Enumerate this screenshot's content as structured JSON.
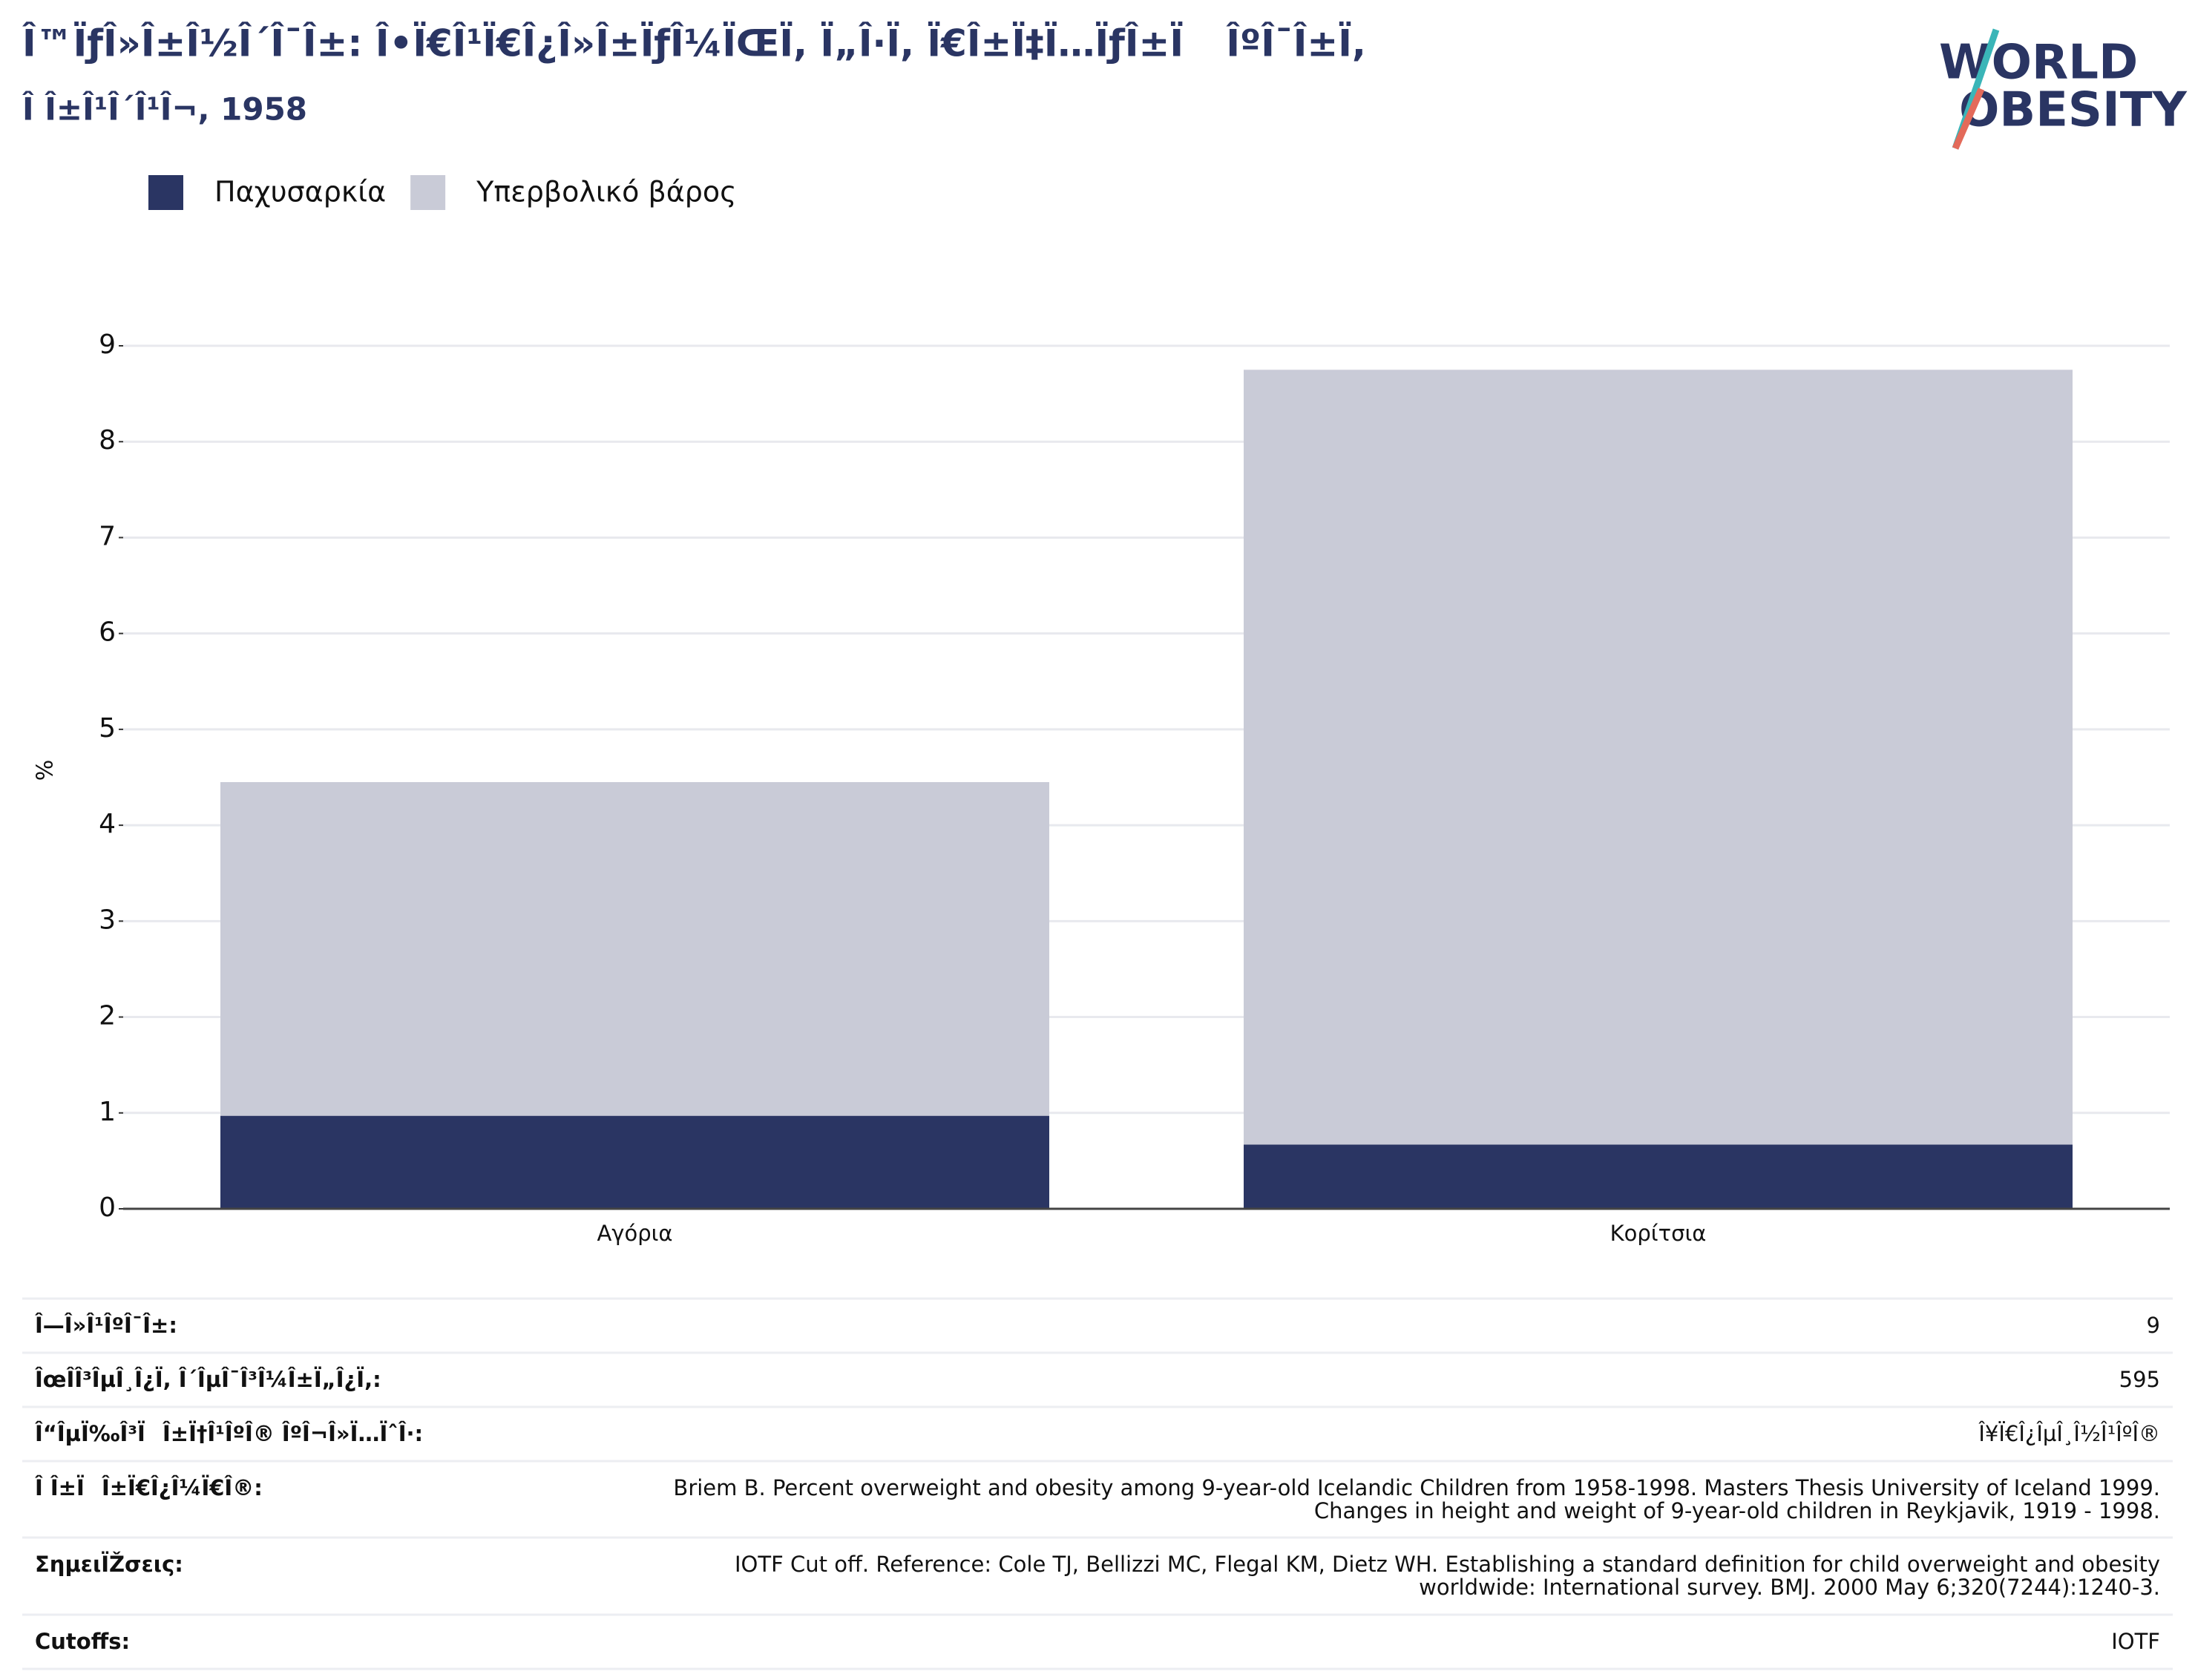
{
  "chart_data": {
    "type": "stacked-bar",
    "title": "Î™ÏƒÎ»Î±Î½Î´Î¯Î±: Î•Ï€Î¹Ï€Î¿Î»Î±ÏƒÎ¼ÏŒÏ, Ï„Î·Ï, Ï€Î±Ï‡Ï…ÏƒÎ±Ï ÎºÎ¯Î±Ï,",
    "subtitle": "Î Î±Î¹Î´Î¹Î¬, 1958",
    "y_label": "%",
    "categories": [
      "Αγόρια",
      "Κορίτσια"
    ],
    "series": [
      {
        "name": "Παχυσαρκία",
        "color": "#2a3563",
        "values": [
          0.97,
          0.67
        ]
      },
      {
        "name": "Υπερβολικό βάρος",
        "color": "#c9cbd7",
        "values": [
          3.48,
          8.08
        ]
      }
    ],
    "ylim": [
      0,
      9
    ],
    "yticks": [
      0,
      1,
      2,
      3,
      4,
      5,
      6,
      7,
      8,
      9
    ],
    "grid": true
  },
  "logo": {
    "line1": "WORLD",
    "line2": "OBESITY"
  },
  "table": {
    "rows": [
      {
        "label": "Î—Î»Î¹ÎºÎ¯Î±:",
        "value": [
          9
        ]
      },
      {
        "label": "ÎœÎ­Î³ÎµÎ¸Î¿Ï, Î´ÎµÎ¯Î³Î¼Î±Ï„Î¿Ï,:",
        "value": [
          595
        ]
      },
      {
        "label": "Î“ÎµÏ‰Î³ÏÎ±Ï†Î¹ÎºÎ® ÎºÎ¬Î»Ï…ÏˆÎ·:",
        "value": [
          "Î¥Ï€Î¿ÎµÎ¸Î½Î¹ÎºÎ®"
        ]
      },
      {
        "label": "Î Î±ÏÎ±Ï€Î¿Î¼Ï€Î®:",
        "value": [
          "Briem B. Percent overweight and obesity among 9-year-old Icelandic Children from 1958-1998. Masters Thesis University of Iceland 1999.",
          "Changes in height and weight of 9-year-old children in Reykjavik, 1919 - 1998."
        ]
      },
      {
        "label": "ΣημειÏŽσεις:",
        "value": [
          "IOTF Cut off. Reference: Cole TJ, Bellizzi MC, Flegal KM, Dietz WH. Establishing a standard definition for child overweight and obesity",
          "worldwide: International survey. BMJ. 2000 May 6;320(7244):1240-3."
        ]
      },
      {
        "label": "Cutoffs:",
        "value": [
          "IOTF"
        ]
      }
    ]
  }
}
